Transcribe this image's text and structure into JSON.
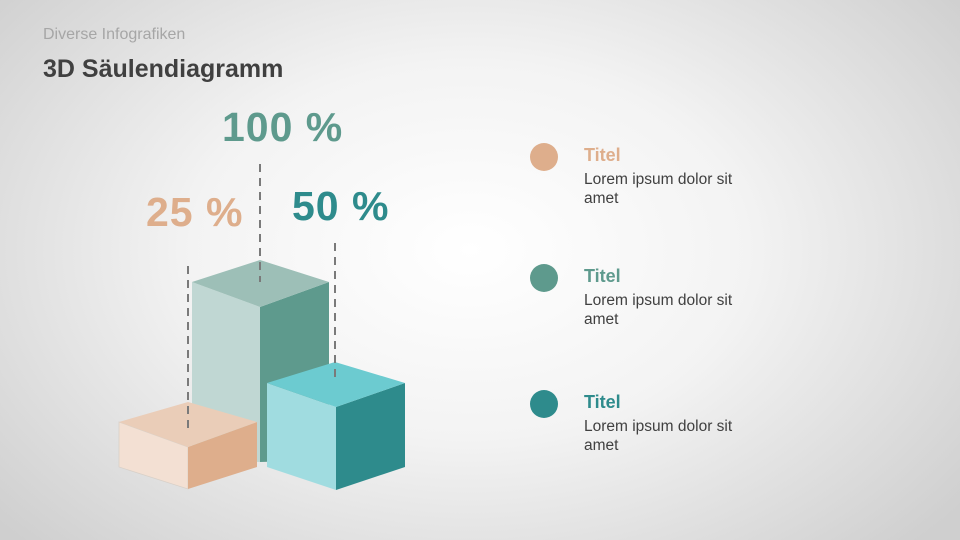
{
  "header": {
    "subtitle": "Diverse Infografiken",
    "title": "3D Säulendiagramm"
  },
  "colors": {
    "peach": "#deae8c",
    "sage": "#5e9a8d",
    "teal": "#2e8b8c"
  },
  "chart_data": {
    "type": "bar",
    "categories": [
      "25 %",
      "100 %",
      "50 %"
    ],
    "values": [
      25,
      100,
      50
    ],
    "labels": [
      "25 %",
      "100 %",
      "50 %"
    ],
    "colors": [
      "#deae8c",
      "#5e9a8d",
      "#2e8b8c"
    ]
  },
  "legend": [
    {
      "title": "Titel",
      "text": "Lorem ipsum dolor sit amet",
      "color": "#deae8c"
    },
    {
      "title": "Titel",
      "text": "Lorem ipsum dolor sit amet",
      "color": "#5e9a8d"
    },
    {
      "title": "Titel",
      "text": "Lorem ipsum dolor sit amet",
      "color": "#2e8b8c"
    }
  ]
}
